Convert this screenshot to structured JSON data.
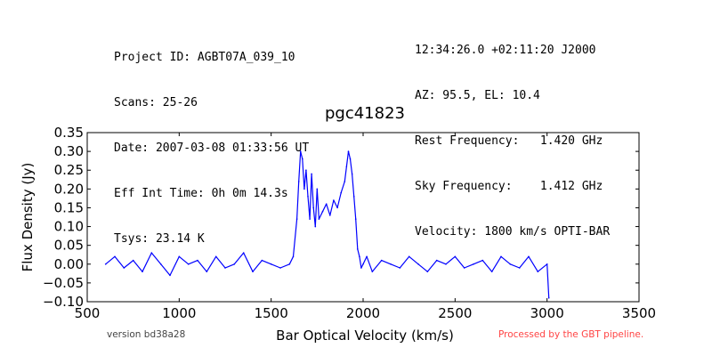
{
  "header": {
    "left": [
      "Project ID: AGBT07A_039_10",
      "Scans: 25-26",
      "Date: 2007-03-08 01:33:56 UT",
      "Eff Int Time: 0h 0m 14.3s",
      "Tsys: 23.14 K"
    ],
    "right": [
      "12:34:26.0 +02:11:20 J2000",
      "AZ: 95.5, EL: 10.4",
      "Rest Frequency:   1.420 GHz",
      "Sky Frequency:    1.412 GHz",
      "Velocity: 1800 km/s OPTI-BAR"
    ]
  },
  "footer": {
    "version": "version bd38a28",
    "processed": "Processed by the GBT pipeline."
  },
  "colors": {
    "line": "#0000ff",
    "processed_text": "#ff4444"
  },
  "chart_data": {
    "type": "line",
    "title": "pgc41823",
    "xlabel": "Bar Optical Velocity (km/s)",
    "ylabel": "Flux Density (Jy)",
    "xlim": [
      500,
      3500
    ],
    "ylim": [
      -0.1,
      0.35
    ],
    "xticks": [
      500,
      1000,
      1500,
      2000,
      2500,
      3000,
      3500
    ],
    "xtick_labels": [
      "500",
      "1000",
      "1500",
      "2000",
      "2500",
      "3000",
      "3500"
    ],
    "yticks": [
      -0.1,
      -0.05,
      0.0,
      0.05,
      0.1,
      0.15,
      0.2,
      0.25,
      0.3,
      0.35
    ],
    "ytick_labels": [
      "−0.10",
      "−0.05",
      "0.00",
      "0.05",
      "0.10",
      "0.15",
      "0.20",
      "0.25",
      "0.30",
      "0.35"
    ],
    "grid": false,
    "series": [
      {
        "x": [
          600,
          650,
          700,
          750,
          800,
          850,
          900,
          950,
          1000,
          1050,
          1100,
          1150,
          1200,
          1250,
          1300,
          1350,
          1400,
          1450,
          1500,
          1550,
          1600,
          1620,
          1640,
          1650,
          1660,
          1670,
          1680,
          1690,
          1700,
          1710,
          1720,
          1730,
          1740,
          1750,
          1760,
          1780,
          1800,
          1820,
          1840,
          1860,
          1880,
          1900,
          1910,
          1920,
          1930,
          1940,
          1950,
          1960,
          1970,
          1980,
          1990,
          2000,
          2020,
          2050,
          2100,
          2150,
          2200,
          2250,
          2300,
          2350,
          2400,
          2450,
          2500,
          2550,
          2600,
          2650,
          2700,
          2750,
          2800,
          2850,
          2900,
          2950,
          3000,
          3010
        ],
        "y": [
          0.0,
          0.02,
          -0.01,
          0.01,
          -0.02,
          0.03,
          0.0,
          -0.03,
          0.02,
          0.0,
          0.01,
          -0.02,
          0.02,
          -0.01,
          0.0,
          0.03,
          -0.02,
          0.01,
          0.0,
          -0.01,
          0.0,
          0.02,
          0.12,
          0.22,
          0.3,
          0.28,
          0.2,
          0.25,
          0.18,
          0.12,
          0.24,
          0.15,
          0.1,
          0.2,
          0.12,
          0.14,
          0.16,
          0.13,
          0.17,
          0.15,
          0.19,
          0.22,
          0.26,
          0.3,
          0.28,
          0.24,
          0.18,
          0.12,
          0.04,
          0.02,
          -0.01,
          0.0,
          0.02,
          -0.02,
          0.01,
          0.0,
          -0.01,
          0.02,
          0.0,
          -0.02,
          0.01,
          0.0,
          0.02,
          -0.01,
          0.0,
          0.01,
          -0.02,
          0.02,
          0.0,
          -0.01,
          0.02,
          -0.02,
          0.0,
          -0.09
        ]
      }
    ]
  }
}
